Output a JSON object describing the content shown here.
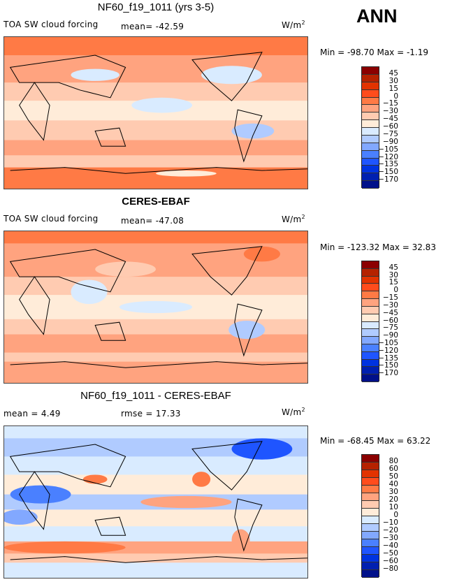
{
  "season_label": "ANN",
  "units": "W/m",
  "units_exp": "2",
  "colors": [
    "#8b0000",
    "#b52200",
    "#e23300",
    "#ff4c1c",
    "#ff7a45",
    "#ffa37f",
    "#ffcbb1",
    "#ffecd9",
    "#d9ebff",
    "#b0cbff",
    "#82a8ff",
    "#4a80ff",
    "#1f55ff",
    "#0033e0",
    "#0020b0",
    "#00108a"
  ],
  "chart_data": [
    {
      "type": "heatmap",
      "title": "NF60_f19_1011 (yrs 3-5)",
      "variable": "TOA SW cloud forcing",
      "mean_label": "mean= -42.59",
      "min_max_label": "Min = -98.70 Max =  -1.19",
      "min": -98.7,
      "max": -1.19,
      "mean": -42.59,
      "colorbar_levels": [
        "45",
        "30",
        "15",
        "0",
        "-15",
        "-30",
        "-45",
        "-60",
        "-75",
        "-90",
        "-105",
        "-120",
        "-135",
        "-150",
        "-170"
      ]
    },
    {
      "type": "heatmap",
      "title": "CERES-EBAF",
      "variable": "TOA SW cloud forcing",
      "mean_label": "mean= -47.08",
      "min_max_label": "Min = -123.32 Max =  32.83",
      "min": -123.32,
      "max": 32.83,
      "mean": -47.08,
      "colorbar_levels": [
        "45",
        "30",
        "15",
        "0",
        "-15",
        "-30",
        "-45",
        "-60",
        "-75",
        "-90",
        "-105",
        "-120",
        "-135",
        "-150",
        "-170"
      ]
    },
    {
      "type": "heatmap",
      "title": "NF60_f19_1011 - CERES-EBAF",
      "mean_label": "mean =    4.49",
      "rmse_label": "rmse =   17.33",
      "min_max_label": "Min = -68.45 Max =  63.22",
      "min": -68.45,
      "max": 63.22,
      "mean": 4.49,
      "rmse": 17.33,
      "colorbar_levels": [
        "80",
        "60",
        "50",
        "40",
        "30",
        "20",
        "10",
        "0",
        "-10",
        "-20",
        "-30",
        "-40",
        "-50",
        "-60",
        "-80"
      ]
    }
  ]
}
